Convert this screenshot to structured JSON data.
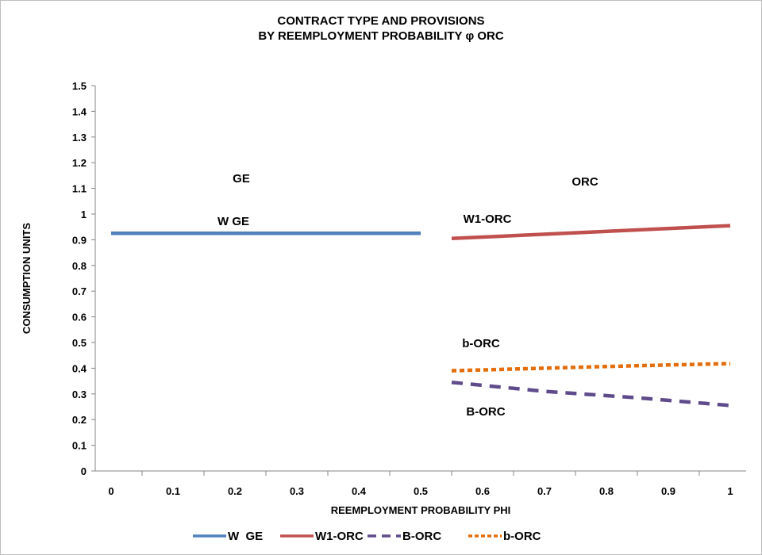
{
  "chart_data": {
    "type": "line",
    "title_line1": "CONTRACT TYPE AND PROVISIONS",
    "title_line2": "BY REEMPLOYMENT PROBABILITY φ ORC",
    "xlabel": "REEMPLOYMENT PROBABILITY PHI",
    "ylabel": "CONSUMPTION UNITS",
    "ylim": [
      0,
      1.5
    ],
    "yticks": [
      "0",
      "0.1",
      "0.2",
      "0.3",
      "0.4",
      "0.5",
      "0.6",
      "0.7",
      "0.8",
      "0.9",
      "1",
      "1.1",
      "1.2",
      "1.3",
      "1.4",
      "1.5"
    ],
    "xticks": [
      "0",
      "0.1",
      "0.2",
      "0.3",
      "0.4",
      "0.5",
      "0.6",
      "0.7",
      "0.8",
      "0.9",
      "1"
    ],
    "grid": false,
    "legend_position": "bottom",
    "series": [
      {
        "name": "W  GE",
        "color": "#4f81bd",
        "dash": "solid",
        "x": [
          0,
          0.5
        ],
        "y": [
          0.925,
          0.925
        ]
      },
      {
        "name": "W1-ORC",
        "color": "#c0504d",
        "dash": "solid",
        "x": [
          0.55,
          1.0
        ],
        "y": [
          0.905,
          0.955
        ]
      },
      {
        "name": "B-ORC",
        "color": "#5f4b8b",
        "dash": "dash",
        "x": [
          0.55,
          0.7,
          0.85,
          1.0
        ],
        "y": [
          0.345,
          0.31,
          0.285,
          0.255
        ]
      },
      {
        "name": "b-ORC",
        "color": "#e46c0a",
        "dash": "dot",
        "x": [
          0.55,
          0.7,
          0.85,
          1.0
        ],
        "y": [
          0.39,
          0.4,
          0.41,
          0.418
        ]
      }
    ],
    "annotations": {
      "ge": "GE",
      "orc": "ORC",
      "w_ge": "W GE",
      "w1_orc": "W1-ORC",
      "b_upper": "b-ORC",
      "b_lower": "B-ORC"
    }
  }
}
